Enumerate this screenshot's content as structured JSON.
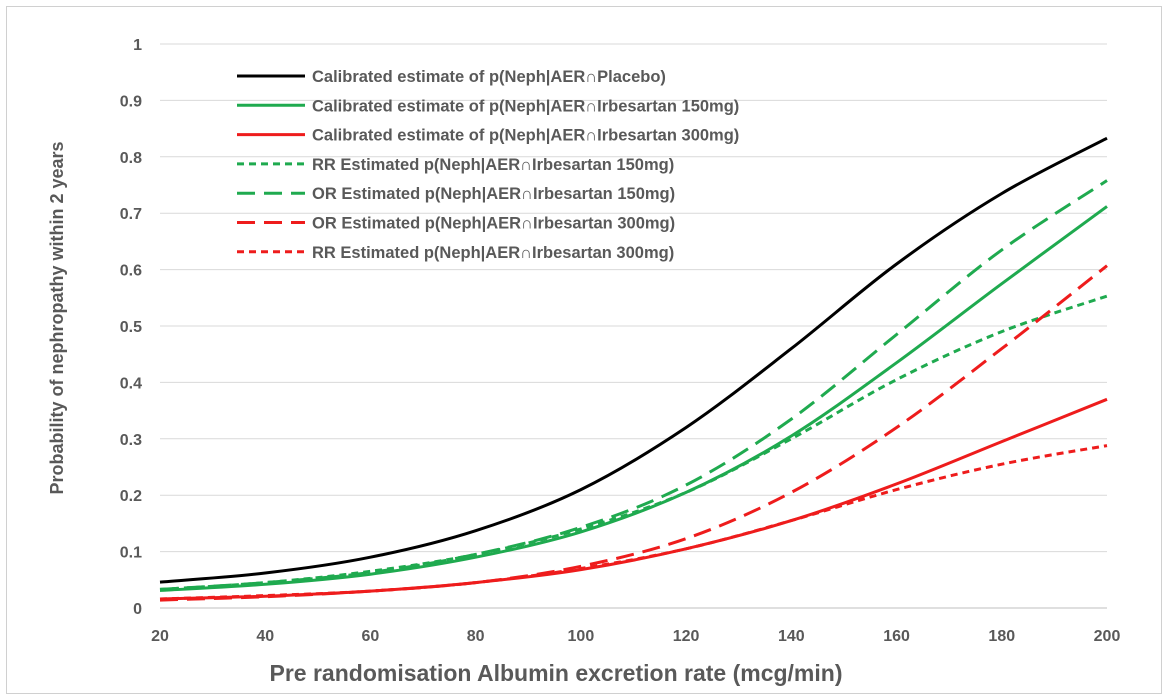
{
  "chart_data": {
    "type": "line",
    "title": "",
    "xlabel": "Pre randomisation Albumin excretion rate (mcg/min)",
    "ylabel": "Probability of nephropathy within 2 years",
    "xlim": [
      20,
      200
    ],
    "ylim": [
      0,
      1
    ],
    "x_ticks": [
      "20",
      "40",
      "60",
      "80",
      "100",
      "120",
      "140",
      "160",
      "180",
      "200"
    ],
    "y_ticks": [
      "0",
      "0.1",
      "0.2",
      "0.3",
      "0.4",
      "0.5",
      "0.6",
      "0.7",
      "0.8",
      "0.9",
      "1"
    ],
    "grid": "horizontal",
    "legend_position": "top-left",
    "x": [
      20,
      40,
      60,
      80,
      100,
      120,
      140,
      160,
      180,
      200
    ],
    "series": [
      {
        "name": "Calibrated estimate of p(Neph|AER∩Placebo)",
        "color": "#000000",
        "dash": "solid",
        "values": [
          0.046,
          0.062,
          0.09,
          0.137,
          0.21,
          0.32,
          0.46,
          0.61,
          0.735,
          0.833
        ]
      },
      {
        "name": "Calibrated estimate of p(Neph|AER∩Irbesartan 150mg)",
        "color": "#1faa4f",
        "dash": "solid",
        "values": [
          0.031,
          0.042,
          0.06,
          0.09,
          0.135,
          0.205,
          0.305,
          0.435,
          0.575,
          0.712
        ]
      },
      {
        "name": "Calibrated estimate of p(Neph|AER∩Irbesartan 300mg)",
        "color": "#ee1c1c",
        "dash": "solid",
        "values": [
          0.016,
          0.021,
          0.03,
          0.045,
          0.068,
          0.105,
          0.155,
          0.22,
          0.295,
          0.37
        ]
      },
      {
        "name": "RR Estimated p(Neph|AER∩Irbesartan 150mg)",
        "color": "#1faa4f",
        "dash": "short",
        "values": [
          0.033,
          0.045,
          0.065,
          0.095,
          0.14,
          0.205,
          0.3,
          0.405,
          0.49,
          0.553
        ]
      },
      {
        "name": "OR Estimated p(Neph|AER∩Irbesartan 150mg)",
        "color": "#1faa4f",
        "dash": "long",
        "values": [
          0.033,
          0.045,
          0.063,
          0.095,
          0.143,
          0.218,
          0.335,
          0.485,
          0.635,
          0.758
        ]
      },
      {
        "name": "OR Estimated p(Neph|AER∩Irbesartan 300mg)",
        "color": "#ee1c1c",
        "dash": "long",
        "values": [
          0.014,
          0.02,
          0.03,
          0.045,
          0.074,
          0.123,
          0.205,
          0.32,
          0.46,
          0.607
        ]
      },
      {
        "name": "RR Estimated p(Neph|AER∩Irbesartan 300mg)",
        "color": "#ee1c1c",
        "dash": "short",
        "values": [
          0.016,
          0.022,
          0.03,
          0.045,
          0.07,
          0.105,
          0.155,
          0.21,
          0.255,
          0.288
        ]
      }
    ]
  }
}
